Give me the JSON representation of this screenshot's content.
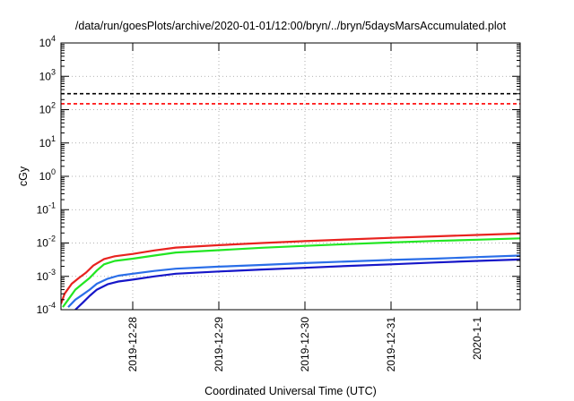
{
  "chart_data": {
    "type": "line",
    "title": "/data/run/goesPlots/archive/2020-01-01/12:00/bryn/../bryn/5daysMarsAccumulated.plot",
    "xlabel": "Coordinated Universal Time (UTC)",
    "ylabel": "cGy",
    "x_unit": "date (UTC)",
    "xlim": [
      "2019-12-27 04:00",
      "2020-01-01 12:00"
    ],
    "x_ticks": [
      {
        "label": "2019-12-28",
        "value": "2019-12-28 00:00"
      },
      {
        "label": "2019-12-29",
        "value": "2019-12-29 00:00"
      },
      {
        "label": "2019-12-30",
        "value": "2019-12-30 00:00"
      },
      {
        "label": "2019-12-31",
        "value": "2019-12-31 00:00"
      },
      {
        "label": "2020-1-1",
        "value": "2020-01-01 00:00"
      }
    ],
    "y_scale": "log",
    "ylim": [
      0.0001,
      10000
    ],
    "y_ticks": [
      {
        "base": "10",
        "exp": "-4",
        "value": 0.0001
      },
      {
        "base": "10",
        "exp": "-3",
        "value": 0.001
      },
      {
        "base": "10",
        "exp": "-2",
        "value": 0.01
      },
      {
        "base": "10",
        "exp": "-1",
        "value": 0.1
      },
      {
        "base": "10",
        "exp": "0",
        "value": 1
      },
      {
        "base": "10",
        "exp": "1",
        "value": 10
      },
      {
        "base": "10",
        "exp": "2",
        "value": 100
      },
      {
        "base": "10",
        "exp": "3",
        "value": 1000
      },
      {
        "base": "10",
        "exp": "4",
        "value": 10000
      }
    ],
    "grid": true,
    "reference_lines": [
      {
        "value": 300,
        "color": "#000000",
        "style": "dashed"
      },
      {
        "value": 150,
        "color": "#ff0000",
        "style": "dashed"
      }
    ],
    "series": [
      {
        "color": "#e8231f",
        "x": [
          "2019-12-27 04:00",
          "2019-12-27 05:00",
          "2019-12-27 07:00",
          "2019-12-27 09:00",
          "2019-12-27 11:00",
          "2019-12-27 13:00",
          "2019-12-27 16:00",
          "2019-12-27 19:00",
          "2019-12-28 00:00",
          "2019-12-28 06:00",
          "2019-12-28 12:00",
          "2019-12-29 00:00",
          "2019-12-29 12:00",
          "2019-12-30 00:00",
          "2019-12-30 12:00",
          "2019-12-31 00:00",
          "2019-12-31 12:00",
          "2020-01-01 00:00",
          "2020-01-01 12:00"
        ],
        "values": [
          0.00015,
          0.0003,
          0.0006,
          0.0009,
          0.0013,
          0.0021,
          0.0033,
          0.004,
          0.0047,
          0.006,
          0.0073,
          0.0086,
          0.01,
          0.0114,
          0.0128,
          0.0143,
          0.0158,
          0.0174,
          0.0192
        ]
      },
      {
        "color": "#22e622",
        "x": [
          "2019-12-27 04:30",
          "2019-12-27 06:00",
          "2019-12-27 08:00",
          "2019-12-27 10:00",
          "2019-12-27 12:00",
          "2019-12-27 14:00",
          "2019-12-27 16:00",
          "2019-12-27 19:00",
          "2019-12-28 00:00",
          "2019-12-28 06:00",
          "2019-12-28 12:00",
          "2019-12-29 00:00",
          "2019-12-29 12:00",
          "2019-12-30 00:00",
          "2019-12-30 12:00",
          "2019-12-31 00:00",
          "2019-12-31 12:00",
          "2020-01-01 00:00",
          "2020-01-01 12:00"
        ],
        "values": [
          0.00012,
          0.0002,
          0.0004,
          0.0006,
          0.0009,
          0.0015,
          0.0023,
          0.0029,
          0.0034,
          0.0042,
          0.0052,
          0.0061,
          0.0072,
          0.0082,
          0.0093,
          0.0104,
          0.0115,
          0.0126,
          0.0138
        ]
      },
      {
        "color": "#2a6ee8",
        "x": [
          "2019-12-27 06:00",
          "2019-12-27 08:00",
          "2019-12-27 10:00",
          "2019-12-27 12:00",
          "2019-12-27 14:00",
          "2019-12-27 17:00",
          "2019-12-27 20:00",
          "2019-12-28 00:00",
          "2019-12-28 06:00",
          "2019-12-28 12:00",
          "2019-12-29 00:00",
          "2019-12-29 12:00",
          "2019-12-30 00:00",
          "2019-12-30 12:00",
          "2019-12-31 00:00",
          "2019-12-31 12:00",
          "2020-01-01 00:00",
          "2020-01-01 12:00"
        ],
        "values": [
          0.00012,
          0.0002,
          0.00028,
          0.0004,
          0.0006,
          0.00085,
          0.00105,
          0.0012,
          0.00145,
          0.0017,
          0.00195,
          0.0022,
          0.0025,
          0.0028,
          0.0031,
          0.0034,
          0.0038,
          0.0042
        ]
      },
      {
        "color": "#1616c8",
        "x": [
          "2019-12-27 08:00",
          "2019-12-27 10:00",
          "2019-12-27 12:00",
          "2019-12-27 14:00",
          "2019-12-27 17:00",
          "2019-12-27 20:00",
          "2019-12-28 00:00",
          "2019-12-28 06:00",
          "2019-12-28 12:00",
          "2019-12-29 00:00",
          "2019-12-29 12:00",
          "2019-12-30 00:00",
          "2019-12-30 12:00",
          "2019-12-31 00:00",
          "2019-12-31 12:00",
          "2020-01-01 00:00",
          "2020-01-01 12:00"
        ],
        "values": [
          0.0001,
          0.00016,
          0.00026,
          0.0004,
          0.00058,
          0.0007,
          0.0008,
          0.001,
          0.0012,
          0.0014,
          0.0016,
          0.0018,
          0.00205,
          0.0023,
          0.0026,
          0.0029,
          0.0032
        ]
      }
    ]
  }
}
